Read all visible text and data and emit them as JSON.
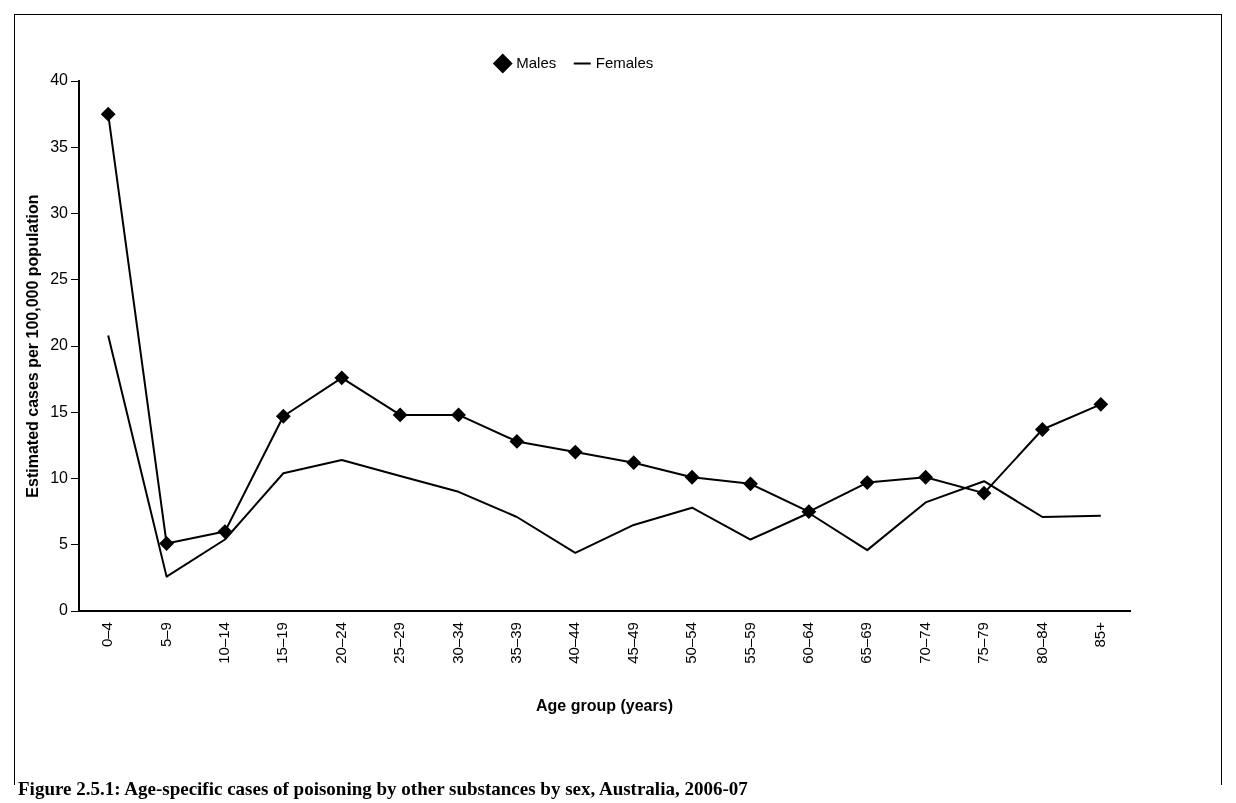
{
  "chart_data": {
    "type": "line",
    "title": "Figure 2.5.1: Age-specific cases of poisoning by other substances by sex, Australia, 2006-07",
    "xlabel": "Age group (years)",
    "ylabel": "Estimated cases per 100,000 population",
    "categories": [
      "0–4",
      "5–9",
      "10–14",
      "15–19",
      "20–24",
      "25–29",
      "30–34",
      "35–39",
      "40–44",
      "45–49",
      "50–54",
      "55–59",
      "60–64",
      "65–69",
      "70–74",
      "75–79",
      "80–84",
      "85+"
    ],
    "series": [
      {
        "name": "Males",
        "color": "#000000",
        "marker": "diamond",
        "values": [
          37.5,
          5.1,
          6.0,
          14.7,
          17.6,
          14.8,
          14.8,
          12.8,
          12.0,
          11.2,
          10.1,
          9.6,
          7.5,
          9.7,
          10.1,
          8.9,
          13.7,
          15.6
        ]
      },
      {
        "name": "Females",
        "color": "#000000",
        "marker": "none",
        "values": [
          20.8,
          2.6,
          5.4,
          10.4,
          11.4,
          10.2,
          9.0,
          7.1,
          4.4,
          6.5,
          7.8,
          5.4,
          7.4,
          4.6,
          8.2,
          9.8,
          7.1,
          7.2
        ]
      }
    ],
    "ylim": [
      0,
      40
    ],
    "yticks": [
      0,
      5,
      10,
      15,
      20,
      25,
      30,
      35,
      40
    ],
    "grid": false,
    "legend": "top",
    "line_style": "solid"
  }
}
